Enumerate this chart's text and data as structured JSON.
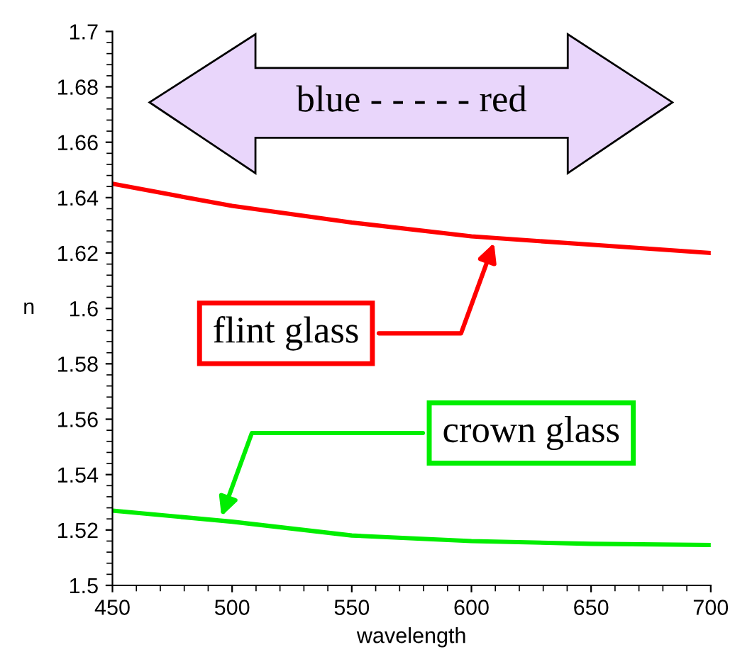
{
  "chart_data": {
    "type": "line",
    "xlabel": "wavelength",
    "ylabel": "n",
    "x": [
      450,
      500,
      550,
      600,
      650,
      700
    ],
    "series": [
      {
        "name": "flint glass",
        "color": "#ff0000",
        "values": [
          1.645,
          1.637,
          1.631,
          1.626,
          1.623,
          1.62
        ]
      },
      {
        "name": "crown glass",
        "color": "#00ee00",
        "values": [
          1.527,
          1.523,
          1.518,
          1.516,
          1.515,
          1.5146
        ]
      }
    ],
    "xlim": [
      450,
      700
    ],
    "xticks": [
      450,
      500,
      550,
      600,
      650,
      700
    ],
    "ylim": [
      1.5,
      1.7
    ],
    "yticks": [
      1.5,
      1.52,
      1.54,
      1.56,
      1.58,
      1.6,
      1.62,
      1.64,
      1.66,
      1.68,
      1.7
    ],
    "annotations": [
      "blue - - - - - red"
    ],
    "grid": false,
    "legend": false,
    "marker": "none",
    "line_style": "solid"
  }
}
